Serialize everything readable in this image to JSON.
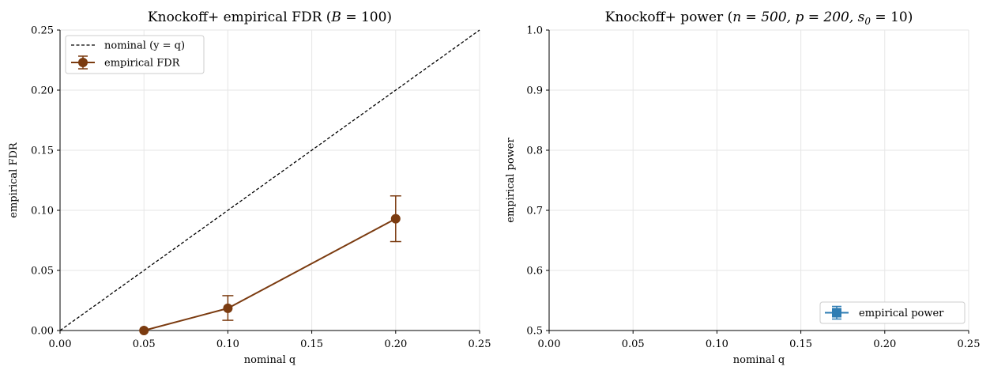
{
  "colors": {
    "fdr": "#7b3b10",
    "power": "#2f7db3",
    "nominal": "#000000"
  },
  "chart_data": [
    {
      "type": "line",
      "title": "Knockoff+ empirical FDR (",
      "title_math": "B",
      "title_math_rest": " = 100)",
      "xlabel": "nominal q",
      "ylabel": "empirical FDR",
      "xlim": [
        0.0,
        0.25
      ],
      "ylim": [
        0.0,
        0.25
      ],
      "xticks": [
        "0.00",
        "0.05",
        "0.10",
        "0.15",
        "0.20",
        "0.25"
      ],
      "yticks": [
        "0.00",
        "0.05",
        "0.10",
        "0.15",
        "0.20",
        "0.25"
      ],
      "grid": true,
      "legend_position": "top-left",
      "series": [
        {
          "name": "nominal (y = q)",
          "style": "dashed",
          "x": [
            0.0,
            0.25
          ],
          "y": [
            0.0,
            0.25
          ]
        },
        {
          "name": "empirical FDR",
          "style": "solid-markers-errorbars",
          "x": [
            0.05,
            0.1,
            0.2
          ],
          "y": [
            0.0,
            0.0185,
            0.093
          ],
          "yerr_low": [
            0.0,
            0.0085,
            0.074
          ],
          "yerr_high": [
            0.0,
            0.029,
            0.112
          ]
        }
      ]
    },
    {
      "type": "line",
      "title": "Knockoff+ power (",
      "title_math": "n = 500, p = 200, s",
      "title_math_sub": "0",
      "title_math_rest": " = 10)",
      "xlabel": "nominal q",
      "ylabel": "empirical power",
      "xlim": [
        0.0,
        0.25
      ],
      "ylim": [
        0.5,
        1.0
      ],
      "xticks": [
        "0.00",
        "0.05",
        "0.10",
        "0.15",
        "0.20",
        "0.25"
      ],
      "yticks": [
        "0.5",
        "0.6",
        "0.7",
        "0.8",
        "0.9",
        "1.0"
      ],
      "grid": true,
      "legend_position": "bottom-right",
      "series": [
        {
          "name": "empirical power",
          "style": "solid-markers-errorbars",
          "x": [],
          "y": []
        }
      ]
    }
  ]
}
